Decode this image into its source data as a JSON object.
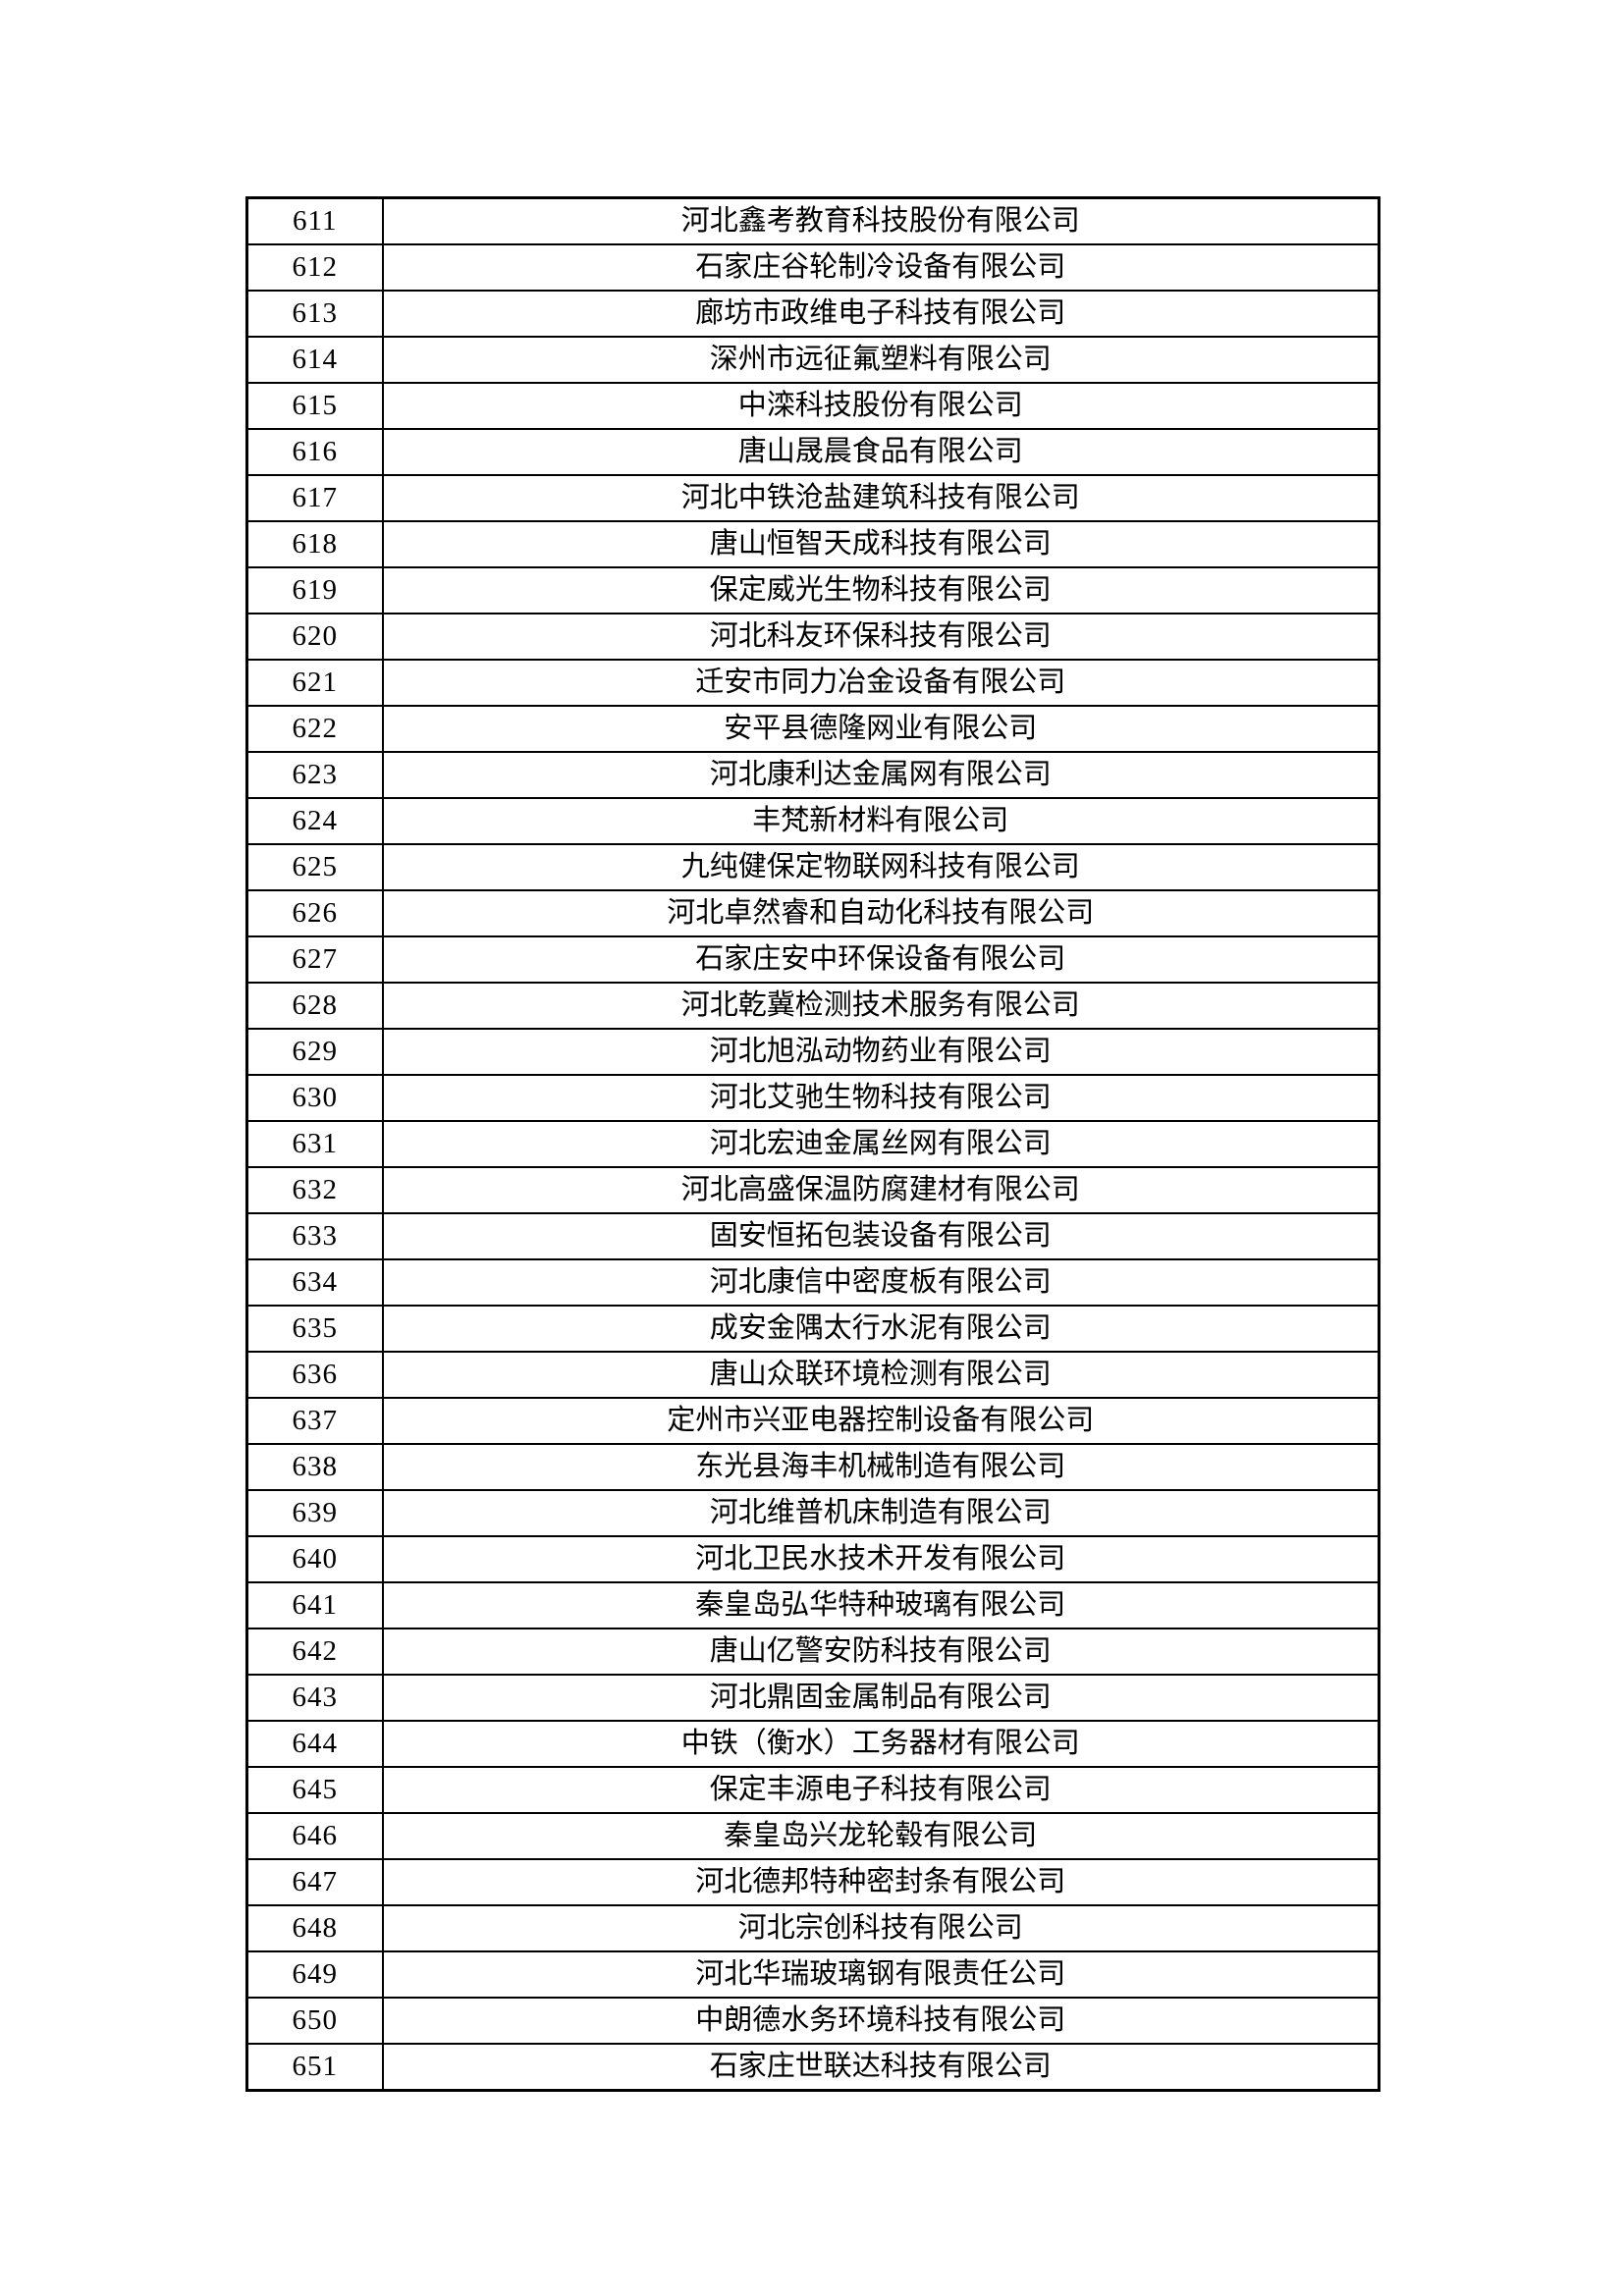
{
  "colors": {
    "background": "#ffffff",
    "border": "#000000",
    "text": "#000000"
  },
  "table": {
    "rows": [
      {
        "no": "611",
        "name": "河北鑫考教育科技股份有限公司"
      },
      {
        "no": "612",
        "name": "石家庄谷轮制冷设备有限公司"
      },
      {
        "no": "613",
        "name": "廊坊市政维电子科技有限公司"
      },
      {
        "no": "614",
        "name": "深州市远征氟塑料有限公司"
      },
      {
        "no": "615",
        "name": "中滦科技股份有限公司"
      },
      {
        "no": "616",
        "name": "唐山晟晨食品有限公司"
      },
      {
        "no": "617",
        "name": "河北中铁沧盐建筑科技有限公司"
      },
      {
        "no": "618",
        "name": "唐山恒智天成科技有限公司"
      },
      {
        "no": "619",
        "name": "保定威光生物科技有限公司"
      },
      {
        "no": "620",
        "name": "河北科友环保科技有限公司"
      },
      {
        "no": "621",
        "name": "迁安市同力冶金设备有限公司"
      },
      {
        "no": "622",
        "name": "安平县德隆网业有限公司"
      },
      {
        "no": "623",
        "name": "河北康利达金属网有限公司"
      },
      {
        "no": "624",
        "name": "丰梵新材料有限公司"
      },
      {
        "no": "625",
        "name": "九纯健保定物联网科技有限公司"
      },
      {
        "no": "626",
        "name": "河北卓然睿和自动化科技有限公司"
      },
      {
        "no": "627",
        "name": "石家庄安中环保设备有限公司"
      },
      {
        "no": "628",
        "name": "河北乾冀检测技术服务有限公司"
      },
      {
        "no": "629",
        "name": "河北旭泓动物药业有限公司"
      },
      {
        "no": "630",
        "name": "河北艾驰生物科技有限公司"
      },
      {
        "no": "631",
        "name": "河北宏迪金属丝网有限公司"
      },
      {
        "no": "632",
        "name": "河北高盛保温防腐建材有限公司"
      },
      {
        "no": "633",
        "name": "固安恒拓包装设备有限公司"
      },
      {
        "no": "634",
        "name": "河北康信中密度板有限公司"
      },
      {
        "no": "635",
        "name": "成安金隅太行水泥有限公司"
      },
      {
        "no": "636",
        "name": "唐山众联环境检测有限公司"
      },
      {
        "no": "637",
        "name": "定州市兴亚电器控制设备有限公司"
      },
      {
        "no": "638",
        "name": "东光县海丰机械制造有限公司"
      },
      {
        "no": "639",
        "name": "河北维普机床制造有限公司"
      },
      {
        "no": "640",
        "name": "河北卫民水技术开发有限公司"
      },
      {
        "no": "641",
        "name": "秦皇岛弘华特种玻璃有限公司"
      },
      {
        "no": "642",
        "name": "唐山亿警安防科技有限公司"
      },
      {
        "no": "643",
        "name": "河北鼎固金属制品有限公司"
      },
      {
        "no": "644",
        "name": "中铁（衡水）工务器材有限公司"
      },
      {
        "no": "645",
        "name": "保定丰源电子科技有限公司"
      },
      {
        "no": "646",
        "name": "秦皇岛兴龙轮毂有限公司"
      },
      {
        "no": "647",
        "name": "河北德邦特种密封条有限公司"
      },
      {
        "no": "648",
        "name": "河北宗创科技有限公司"
      },
      {
        "no": "649",
        "name": "河北华瑞玻璃钢有限责任公司"
      },
      {
        "no": "650",
        "name": "中朗德水务环境科技有限公司"
      },
      {
        "no": "651",
        "name": "石家庄世联达科技有限公司"
      }
    ]
  }
}
